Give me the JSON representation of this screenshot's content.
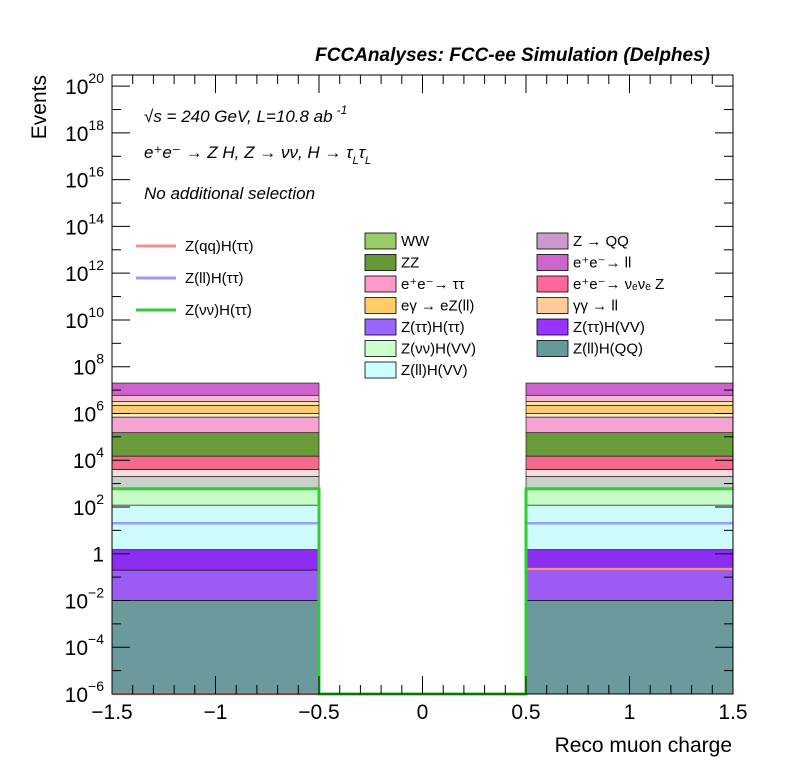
{
  "header": "FCCAnalyses: FCC-ee Simulation (Delphes)",
  "annotations": {
    "energy_prefix": "√s = 240 GeV, L=10.8 ab",
    "energy_sup": "-1",
    "process": "e⁺e⁻ → Z H, Z → νν, H → τ",
    "process_sub1": "L",
    "process_tau": "τ",
    "process_sub2": "L",
    "selection": "No additional selection"
  },
  "chart_data": {
    "type": "bar",
    "xlabel": "Reco muon charge",
    "ylabel": "Events",
    "xlim": [
      -1.5,
      1.5
    ],
    "ylim": [
      1e-06,
      3e+20
    ],
    "log_y": true,
    "x_ticks": [
      "−1.5",
      "−1",
      "−0.5",
      "0",
      "0.5",
      "1",
      "1.5"
    ],
    "y_ticks": [
      {
        "base": "10",
        "exp": "−6"
      },
      {
        "base": "10",
        "exp": "−4"
      },
      {
        "base": "10",
        "exp": "−2"
      },
      {
        "base": "1",
        "exp": ""
      },
      {
        "base": "10",
        "exp": "2"
      },
      {
        "base": "10",
        "exp": "4"
      },
      {
        "base": "10",
        "exp": "6"
      },
      {
        "base": "10",
        "exp": "8"
      },
      {
        "base": "10",
        "exp": "10"
      },
      {
        "base": "10",
        "exp": "12"
      },
      {
        "base": "10",
        "exp": "14"
      },
      {
        "base": "10",
        "exp": "16"
      },
      {
        "base": "10",
        "exp": "18"
      },
      {
        "base": "10",
        "exp": "20"
      }
    ],
    "bins": [
      {
        "x0": -1.5,
        "x1": -0.5
      },
      {
        "x0": -0.5,
        "x1": 0.5
      },
      {
        "x0": 0.5,
        "x1": 1.5
      }
    ],
    "stack_bands": [
      {
        "color": "#6a9a9b",
        "from": 1e-06,
        "to": 0.01
      },
      {
        "color": "#9c5bf3",
        "from": 0.01,
        "to": 0.2
      },
      {
        "color": "#8b2ef0",
        "from": 0.2,
        "to": 1.5
      },
      {
        "color": "#ccfcfc",
        "from": 1.5,
        "to": 120
      },
      {
        "color": "#c6fcc6",
        "from": 120,
        "to": 600
      },
      {
        "color": "#c9cfc9",
        "from": 600,
        "to": 2000
      },
      {
        "color": "#f3dcdc",
        "from": 2000,
        "to": 4000
      },
      {
        "color": "#f26b8e",
        "from": 4000,
        "to": 15000
      },
      {
        "color": "#6b9b3a",
        "from": 15000,
        "to": 150000
      },
      {
        "color": "#f5a3d2",
        "from": 150000,
        "to": 700000
      },
      {
        "color": "#f7f3c3",
        "from": 700000,
        "to": 1000000
      },
      {
        "color": "#fccc73",
        "from": 1000000,
        "to": 2200000
      },
      {
        "color": "#fbe0a6",
        "from": 2200000,
        "to": 3300000
      },
      {
        "color": "#f3b9d5",
        "from": 3300000,
        "to": 6000000
      },
      {
        "color": "#cd63cd",
        "from": 6000000,
        "to": 20000000
      }
    ],
    "stack_bins": [
      0,
      2
    ],
    "series": [
      {
        "name": "Z(qq)H(ττ)",
        "color": "#f5918f",
        "values": [
          1e-06,
          1e-06,
          0.22
        ]
      },
      {
        "name": "Z(ll)H(ττ)",
        "color": "#9a9bfa",
        "values": [
          20,
          1e-06,
          20
        ]
      },
      {
        "name": "Z(νν)H(ττ)",
        "color": "#33cc33",
        "values": [
          600,
          1e-06,
          600
        ]
      }
    ],
    "legend_lines": [
      {
        "label": "Z(qq)H(ττ)",
        "color": "#f5918f"
      },
      {
        "label": "Z(ll)H(ττ)",
        "color": "#9a9bfa"
      },
      {
        "label": "Z(νν)H(ττ)",
        "color": "#33cc33"
      }
    ],
    "legend_fills": [
      {
        "label": "WW",
        "color": "#99cc66"
      },
      {
        "label": "Z → QQ",
        "color": "#cc99cc"
      },
      {
        "label": "ZZ",
        "color": "#669933"
      },
      {
        "label": "e⁺e⁻→ ll",
        "color": "#cc66cc"
      },
      {
        "label": "e⁺e⁻→ ττ",
        "color": "#ff99cc"
      },
      {
        "label": "e⁺e⁻→ νₑνₑ Z",
        "color": "#ff6699"
      },
      {
        "label": "eγ → eZ(ll)",
        "color": "#ffcc66"
      },
      {
        "label": "γγ → ll",
        "color": "#ffcc99"
      },
      {
        "label": "Z(ττ)H(ττ)",
        "color": "#9966ff"
      },
      {
        "label": "Z(ττ)H(VV)",
        "color": "#9933ff"
      },
      {
        "label": "Z(νν)H(VV)",
        "color": "#ccffcc"
      },
      {
        "label": "Z(ll)H(QQ)",
        "color": "#669999"
      },
      {
        "label": "Z(ll)H(VV)",
        "color": "#ccffff"
      }
    ]
  }
}
